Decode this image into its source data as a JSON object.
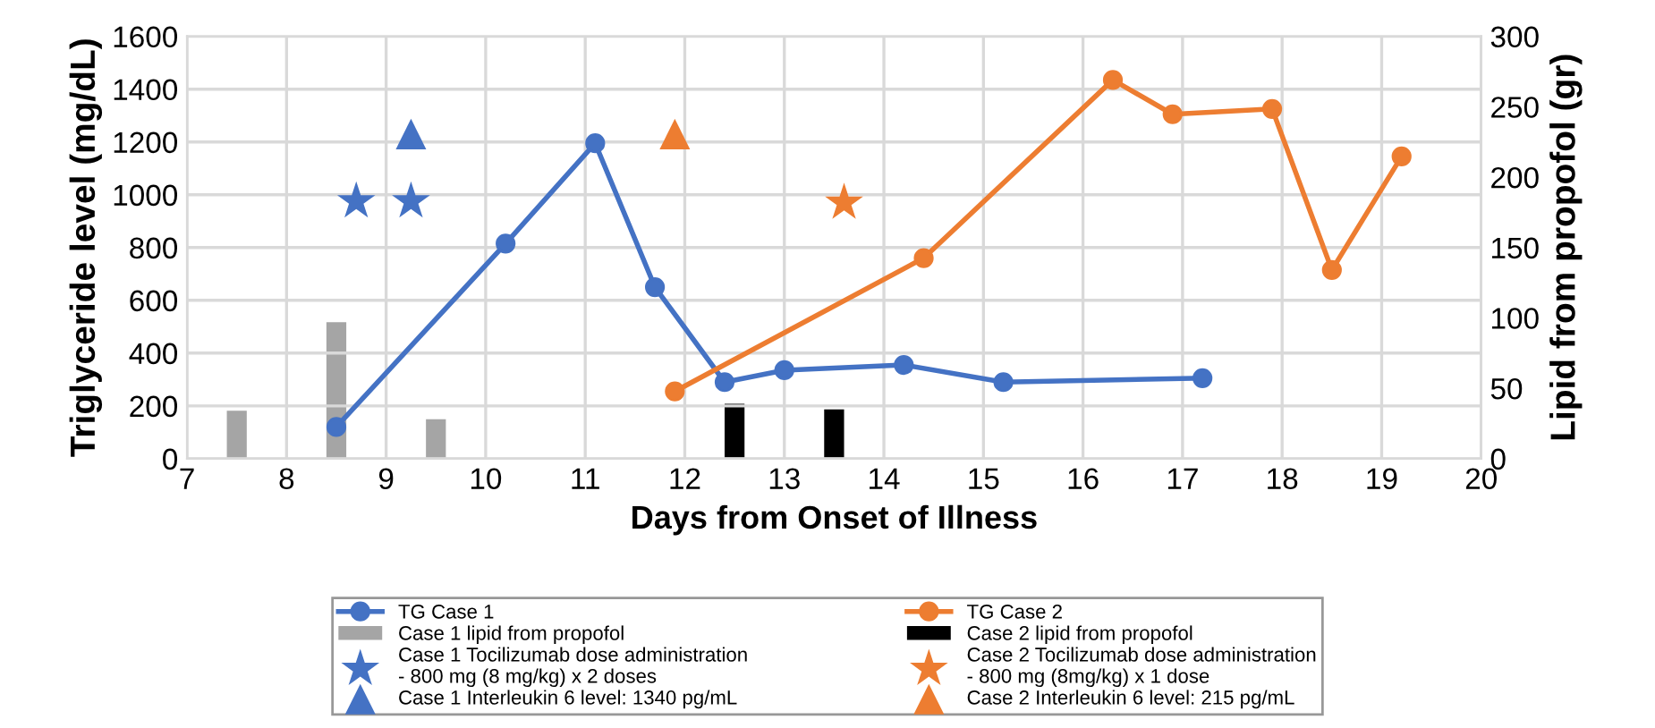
{
  "chart_data": {
    "type": "line",
    "xlabel": "Days from Onset of Illness",
    "ylabel": "Triglyceride level (mg/dL)",
    "y2label": "Lipid from propofol (gr)",
    "xlim": [
      7,
      20
    ],
    "xticks": [
      7,
      8,
      9,
      10,
      11,
      12,
      13,
      14,
      15,
      16,
      17,
      18,
      19,
      20
    ],
    "ylim": [
      0,
      1600
    ],
    "yticks": [
      0,
      200,
      400,
      600,
      800,
      1000,
      1200,
      1400,
      1600
    ],
    "y2lim": [
      0,
      300
    ],
    "y2ticks": [
      0,
      50,
      100,
      150,
      200,
      250,
      300
    ],
    "grid": true,
    "legend": "bottom",
    "series": [
      {
        "name": "TG Case 1",
        "marker": "circle",
        "color": "#4472c4",
        "x": [
          8.5,
          10.2,
          11.1,
          11.7,
          12.4,
          13.0,
          14.2,
          15.2,
          17.2
        ],
        "values": [
          120,
          815,
          1195,
          650,
          290,
          335,
          355,
          290,
          305
        ]
      },
      {
        "name": "Case 1 lipid from propofol",
        "type": "bar",
        "axis": "y2",
        "color": "#a5a5a5",
        "x": [
          7.5,
          8.5,
          9.5
        ],
        "values": [
          34,
          97,
          28
        ]
      },
      {
        "name": "Case 1 Tocilizumab dose administration\n- 800 mg (8 mg/kg) x 2 doses",
        "type": "scatter",
        "marker": "star",
        "color": "#4472c4",
        "x": [
          8.7,
          9.25
        ],
        "values": [
          975,
          975
        ]
      },
      {
        "name": "Case 1 Interleukin 6 level: 1340 pg/mL",
        "type": "scatter",
        "marker": "triangle",
        "color": "#4472c4",
        "x": [
          9.25
        ],
        "values": [
          1230
        ]
      },
      {
        "name": "TG Case 2",
        "marker": "circle",
        "color": "#ed7d31",
        "x": [
          11.9,
          14.4,
          16.3,
          16.9,
          17.9,
          18.5,
          19.2
        ],
        "values": [
          255,
          760,
          1435,
          1305,
          1325,
          715,
          1145
        ]
      },
      {
        "name": "Case 2 lipid from propofol",
        "type": "bar",
        "axis": "y2",
        "color": "#000000",
        "x": [
          12.5,
          13.5
        ],
        "values": [
          39,
          35
        ]
      },
      {
        "name": "Case 2 Tocilizumab dose administration\n- 800 mg (8mg/kg) x 1 dose",
        "type": "scatter",
        "marker": "star",
        "color": "#ed7d31",
        "x": [
          13.6
        ],
        "values": [
          970
        ]
      },
      {
        "name": "Case 2 Interleukin 6 level: 215 pg/mL",
        "type": "scatter",
        "marker": "triangle",
        "color": "#ed7d31",
        "x": [
          11.9
        ],
        "values": [
          1230
        ]
      }
    ]
  }
}
